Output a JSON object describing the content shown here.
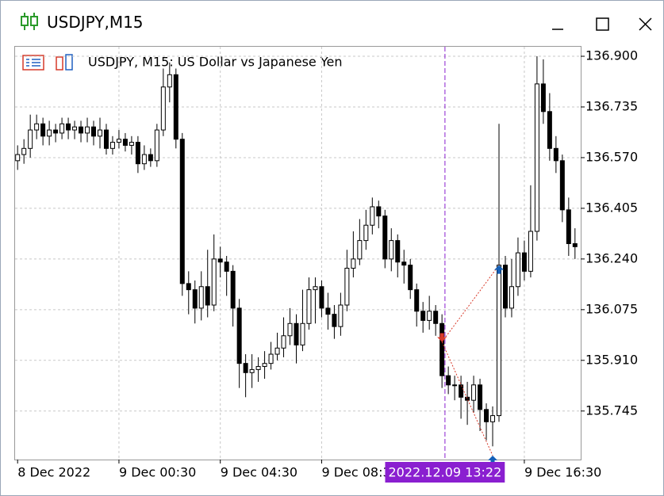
{
  "window": {
    "title": "USDJPY,M15"
  },
  "chart_data": {
    "type": "candlestick",
    "title": "USDJPY, M15:  US Dollar vs Japanese Yen",
    "open": [
      136.56,
      136.58,
      136.6,
      136.66,
      136.68,
      136.64,
      136.66,
      136.65,
      136.68,
      136.66,
      136.67,
      136.65,
      136.67,
      136.64,
      136.66,
      136.6,
      136.62,
      136.63,
      136.61,
      136.62,
      136.55,
      136.58,
      136.56,
      136.66,
      136.8,
      136.84,
      136.63,
      136.16,
      136.14,
      136.08,
      136.15,
      136.09,
      136.24,
      136.23,
      136.2,
      136.08,
      135.9,
      135.87,
      135.88,
      135.89,
      135.9,
      135.93,
      135.95,
      135.99,
      136.03,
      135.96,
      136.03,
      136.14,
      136.15,
      136.08,
      136.06,
      136.02,
      136.09,
      136.21,
      136.24,
      136.3,
      136.35,
      136.41,
      136.38,
      136.24,
      136.3,
      136.23,
      136.22,
      136.14,
      136.07,
      136.04,
      136.07,
      136.03,
      135.86,
      135.83,
      135.83,
      135.79,
      135.78,
      135.83,
      135.75,
      135.71,
      135.73,
      136.22,
      136.08,
      136.15,
      136.26,
      136.2,
      136.33,
      136.81,
      136.72,
      136.6,
      136.56,
      136.4,
      136.29
    ],
    "high": [
      136.61,
      136.63,
      136.71,
      136.71,
      136.7,
      136.69,
      136.68,
      136.7,
      136.7,
      136.69,
      136.69,
      136.7,
      136.69,
      136.7,
      136.68,
      136.64,
      136.66,
      136.65,
      136.64,
      136.64,
      136.61,
      136.6,
      136.68,
      136.86,
      136.88,
      136.86,
      136.65,
      136.2,
      136.17,
      136.2,
      136.27,
      136.32,
      136.28,
      136.25,
      136.22,
      136.11,
      135.93,
      135.93,
      135.92,
      135.94,
      135.97,
      136.0,
      136.05,
      136.08,
      136.06,
      136.14,
      136.18,
      136.18,
      136.17,
      136.13,
      136.09,
      136.13,
      136.27,
      136.33,
      136.37,
      136.4,
      136.44,
      136.43,
      136.4,
      136.34,
      136.32,
      136.27,
      136.24,
      136.16,
      136.1,
      136.12,
      136.09,
      136.06,
      135.89,
      135.86,
      135.86,
      135.84,
      135.86,
      135.85,
      135.77,
      135.76,
      136.68,
      136.25,
      136.24,
      136.31,
      136.3,
      136.48,
      136.9,
      136.89,
      136.78,
      136.64,
      136.58,
      136.44,
      136.34
    ],
    "low": [
      136.53,
      136.55,
      136.57,
      136.63,
      136.61,
      136.61,
      136.62,
      136.63,
      136.63,
      136.63,
      136.62,
      136.62,
      136.61,
      136.6,
      136.58,
      136.58,
      136.6,
      136.59,
      136.58,
      136.52,
      136.53,
      136.54,
      136.54,
      136.64,
      136.75,
      136.6,
      136.12,
      136.06,
      136.03,
      136.04,
      136.05,
      136.07,
      136.18,
      136.12,
      136.02,
      135.82,
      135.79,
      135.82,
      135.84,
      135.85,
      135.88,
      135.91,
      135.92,
      135.96,
      135.9,
      135.94,
      136.01,
      136.03,
      136.05,
      136.01,
      135.98,
      135.99,
      136.07,
      136.18,
      136.22,
      136.27,
      136.32,
      136.34,
      136.21,
      136.2,
      136.18,
      136.16,
      136.11,
      136.02,
      136.0,
      136.01,
      135.99,
      135.82,
      135.8,
      135.78,
      135.72,
      135.7,
      135.74,
      135.68,
      135.65,
      135.63,
      135.71,
      136.05,
      136.05,
      136.12,
      136.17,
      136.18,
      136.3,
      136.68,
      136.56,
      136.52,
      136.36,
      136.25,
      136.24
    ],
    "close": [
      136.58,
      136.6,
      136.66,
      136.68,
      136.64,
      136.66,
      136.65,
      136.68,
      136.66,
      136.67,
      136.65,
      136.67,
      136.64,
      136.66,
      136.6,
      136.62,
      136.63,
      136.61,
      136.62,
      136.55,
      136.58,
      136.56,
      136.66,
      136.8,
      136.84,
      136.63,
      136.16,
      136.14,
      136.08,
      136.15,
      136.09,
      136.24,
      136.23,
      136.2,
      136.08,
      135.9,
      135.87,
      135.88,
      135.89,
      135.9,
      135.93,
      135.95,
      135.99,
      136.03,
      135.96,
      136.03,
      136.14,
      136.15,
      136.08,
      136.06,
      136.02,
      136.09,
      136.21,
      136.24,
      136.3,
      136.35,
      136.41,
      136.38,
      136.24,
      136.3,
      136.23,
      136.22,
      136.14,
      136.07,
      136.04,
      136.07,
      136.03,
      135.86,
      135.83,
      135.83,
      135.79,
      135.78,
      135.83,
      135.75,
      135.71,
      135.73,
      136.22,
      136.08,
      136.15,
      136.26,
      136.2,
      136.33,
      136.81,
      136.72,
      136.6,
      136.56,
      136.4,
      136.29,
      136.28
    ],
    "xlim": [
      -0.4,
      88.9
    ],
    "xticks": [
      {
        "value": 0,
        "label": "8 Dec 2022"
      },
      {
        "value": 16,
        "label": "9 Dec 00:30"
      },
      {
        "value": 32,
        "label": "9 Dec 04:30"
      },
      {
        "value": 48,
        "label": "9 Dec 08:30"
      },
      {
        "value": 80,
        "label": "9 Dec 16:30"
      }
    ],
    "ylim": [
      135.587,
      136.931
    ],
    "yticks": [
      135.745,
      {
        "value": 135.91,
        "label": "135.910"
      },
      136.075,
      {
        "value": 136.24,
        "label": "136.240"
      },
      136.405,
      {
        "value": 136.57,
        "label": "136.570"
      },
      136.735,
      {
        "value": 136.9,
        "label": "136.900"
      }
    ],
    "grid": true,
    "crosshair": {
      "x": 67.47,
      "label": "2022.12.09 13:22",
      "color": "#8a1fd0"
    },
    "markers": [
      {
        "x": 67,
        "y": 135.97,
        "color": "#d83a2a",
        "shape": "down"
      },
      {
        "x": 76,
        "y": 136.22,
        "color": "#1560b8",
        "shape": "up"
      },
      {
        "x": 75,
        "y": 135.6,
        "color": "#1560b8",
        "shape": "up"
      }
    ]
  }
}
